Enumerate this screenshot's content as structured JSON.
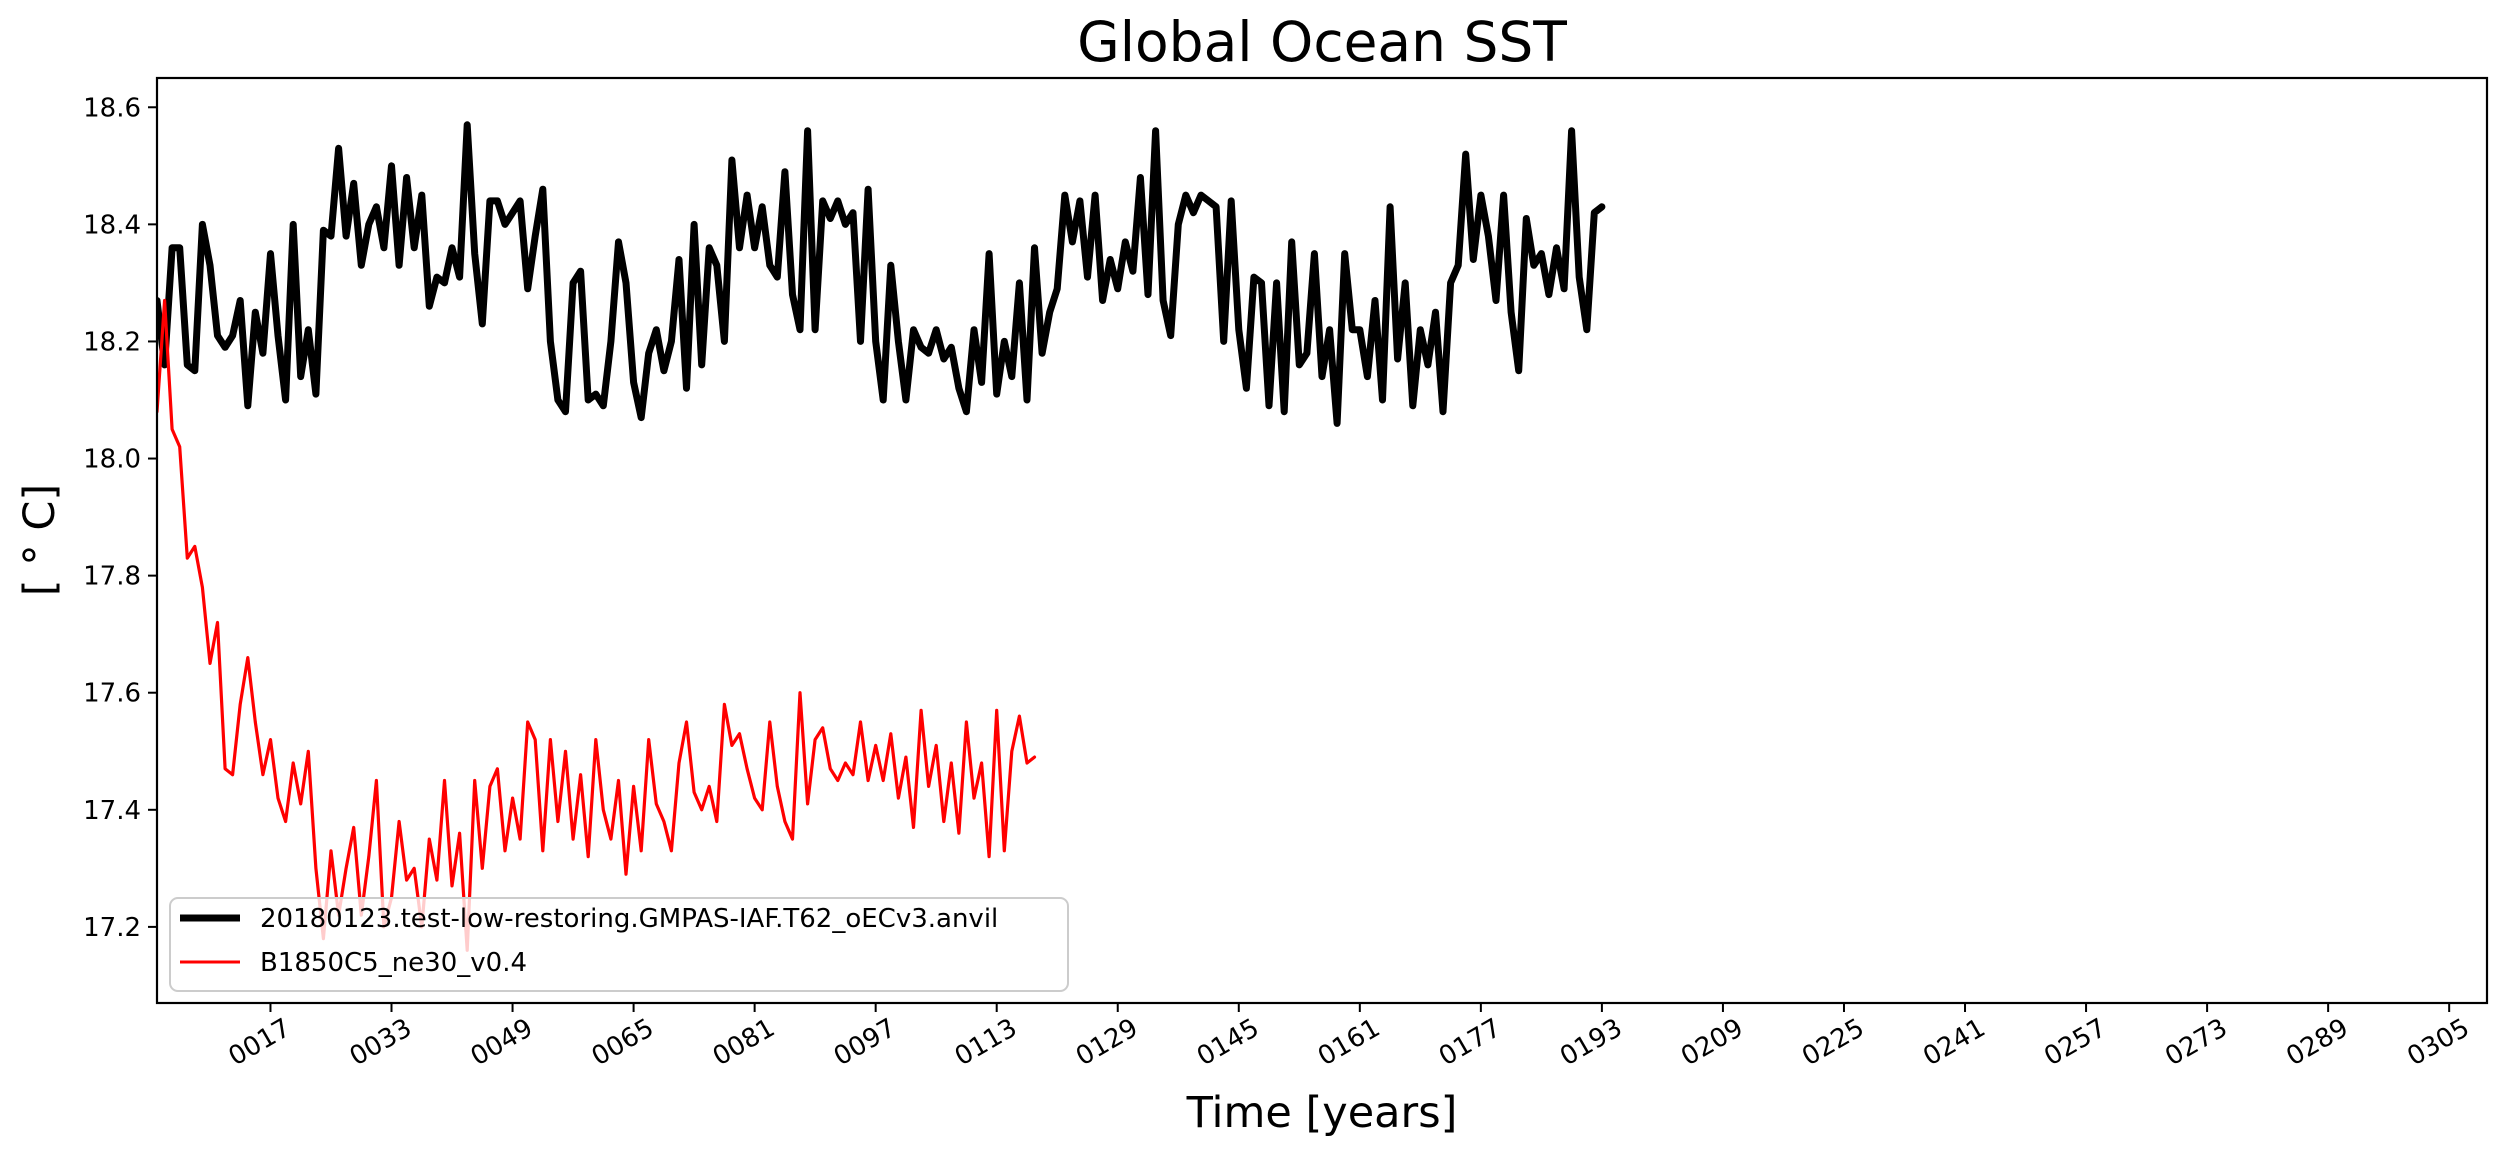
{
  "chart_data": {
    "type": "line",
    "title": "Global Ocean SST",
    "xlabel": "Time [years]",
    "ylabel": "[$^\\circ$C]",
    "ylabel_display": "[ ° C]",
    "xlim": [
      2,
      310
    ],
    "ylim": [
      17.07,
      18.65
    ],
    "yticks": [
      17.2,
      17.4,
      17.6,
      17.8,
      18.0,
      18.2,
      18.4,
      18.6
    ],
    "ytick_labels": [
      "17.2",
      "17.4",
      "17.6",
      "17.8",
      "18.0",
      "18.2",
      "18.4",
      "18.6"
    ],
    "xticks": [
      17,
      33,
      49,
      65,
      81,
      97,
      113,
      129,
      145,
      161,
      177,
      193,
      209,
      225,
      241,
      257,
      273,
      289,
      305
    ],
    "xtick_labels": [
      "0017",
      "0033",
      "0049",
      "0065",
      "0081",
      "0097",
      "0113",
      "0129",
      "0145",
      "0161",
      "0177",
      "0193",
      "0209",
      "0225",
      "0241",
      "0257",
      "0273",
      "0289",
      "0305"
    ],
    "grid": false,
    "legend_position": "lower-left",
    "series": [
      {
        "name": "20180123.test-low-restoring.GMPAS-IAF.T62_oECv3.anvil",
        "color": "#000000",
        "style": "thick",
        "points": [
          [
            2,
            18.27
          ],
          [
            3,
            18.16
          ],
          [
            4,
            18.36
          ],
          [
            5,
            18.36
          ],
          [
            6,
            18.16
          ],
          [
            7,
            18.15
          ],
          [
            8,
            18.4
          ],
          [
            9,
            18.33
          ],
          [
            10,
            18.21
          ],
          [
            11,
            18.19
          ],
          [
            12,
            18.21
          ],
          [
            13,
            18.27
          ],
          [
            14,
            18.09
          ],
          [
            15,
            18.25
          ],
          [
            16,
            18.18
          ],
          [
            17,
            18.35
          ],
          [
            18,
            18.21
          ],
          [
            19,
            18.1
          ],
          [
            20,
            18.4
          ],
          [
            21,
            18.14
          ],
          [
            22,
            18.22
          ],
          [
            23,
            18.11
          ],
          [
            24,
            18.39
          ],
          [
            25,
            18.38
          ],
          [
            26,
            18.53
          ],
          [
            27,
            18.38
          ],
          [
            28,
            18.47
          ],
          [
            29,
            18.33
          ],
          [
            30,
            18.4
          ],
          [
            31,
            18.43
          ],
          [
            32,
            18.36
          ],
          [
            33,
            18.5
          ],
          [
            34,
            18.33
          ],
          [
            35,
            18.48
          ],
          [
            36,
            18.36
          ],
          [
            37,
            18.45
          ],
          [
            38,
            18.26
          ],
          [
            39,
            18.31
          ],
          [
            40,
            18.3
          ],
          [
            41,
            18.36
          ],
          [
            42,
            18.31
          ],
          [
            43,
            18.57
          ],
          [
            44,
            18.35
          ],
          [
            45,
            18.23
          ],
          [
            46,
            18.44
          ],
          [
            47,
            18.44
          ],
          [
            48,
            18.4
          ],
          [
            49,
            18.42
          ],
          [
            50,
            18.44
          ],
          [
            51,
            18.29
          ],
          [
            52,
            18.38
          ],
          [
            53,
            18.46
          ],
          [
            54,
            18.2
          ],
          [
            55,
            18.1
          ],
          [
            56,
            18.08
          ],
          [
            57,
            18.3
          ],
          [
            58,
            18.32
          ],
          [
            59,
            18.1
          ],
          [
            60,
            18.11
          ],
          [
            61,
            18.09
          ],
          [
            62,
            18.2
          ],
          [
            63,
            18.37
          ],
          [
            64,
            18.3
          ],
          [
            65,
            18.13
          ],
          [
            66,
            18.07
          ],
          [
            67,
            18.18
          ],
          [
            68,
            18.22
          ],
          [
            69,
            18.15
          ],
          [
            70,
            18.2
          ],
          [
            71,
            18.34
          ],
          [
            72,
            18.12
          ],
          [
            73,
            18.4
          ],
          [
            74,
            18.16
          ],
          [
            75,
            18.36
          ],
          [
            76,
            18.33
          ],
          [
            77,
            18.2
          ],
          [
            78,
            18.51
          ],
          [
            79,
            18.36
          ],
          [
            80,
            18.45
          ],
          [
            81,
            18.36
          ],
          [
            82,
            18.43
          ],
          [
            83,
            18.33
          ],
          [
            84,
            18.31
          ],
          [
            85,
            18.49
          ],
          [
            86,
            18.28
          ],
          [
            87,
            18.22
          ],
          [
            88,
            18.56
          ],
          [
            89,
            18.22
          ],
          [
            90,
            18.44
          ],
          [
            91,
            18.41
          ],
          [
            92,
            18.44
          ],
          [
            93,
            18.4
          ],
          [
            94,
            18.42
          ],
          [
            95,
            18.2
          ],
          [
            96,
            18.46
          ],
          [
            97,
            18.2
          ],
          [
            98,
            18.1
          ],
          [
            99,
            18.33
          ],
          [
            100,
            18.2
          ],
          [
            101,
            18.1
          ],
          [
            102,
            18.22
          ],
          [
            103,
            18.19
          ],
          [
            104,
            18.18
          ],
          [
            105,
            18.22
          ],
          [
            106,
            18.17
          ],
          [
            107,
            18.19
          ],
          [
            108,
            18.12
          ],
          [
            109,
            18.08
          ],
          [
            110,
            18.22
          ],
          [
            111,
            18.13
          ],
          [
            112,
            18.35
          ],
          [
            113,
            18.11
          ],
          [
            114,
            18.2
          ],
          [
            115,
            18.14
          ],
          [
            116,
            18.3
          ],
          [
            117,
            18.1
          ],
          [
            118,
            18.36
          ],
          [
            119,
            18.18
          ],
          [
            120,
            18.25
          ],
          [
            121,
            18.29
          ],
          [
            122,
            18.45
          ],
          [
            123,
            18.37
          ],
          [
            124,
            18.44
          ],
          [
            125,
            18.31
          ],
          [
            126,
            18.45
          ],
          [
            127,
            18.27
          ],
          [
            128,
            18.34
          ],
          [
            129,
            18.29
          ],
          [
            130,
            18.37
          ],
          [
            131,
            18.32
          ],
          [
            132,
            18.48
          ],
          [
            133,
            18.28
          ],
          [
            134,
            18.56
          ],
          [
            135,
            18.27
          ],
          [
            136,
            18.21
          ],
          [
            137,
            18.4
          ],
          [
            138,
            18.45
          ],
          [
            139,
            18.42
          ],
          [
            140,
            18.45
          ],
          [
            141,
            18.44
          ],
          [
            142,
            18.43
          ],
          [
            143,
            18.2
          ],
          [
            144,
            18.44
          ],
          [
            145,
            18.22
          ],
          [
            146,
            18.12
          ],
          [
            147,
            18.31
          ],
          [
            148,
            18.3
          ],
          [
            149,
            18.09
          ],
          [
            150,
            18.3
          ],
          [
            151,
            18.08
          ],
          [
            152,
            18.37
          ],
          [
            153,
            18.16
          ],
          [
            154,
            18.18
          ],
          [
            155,
            18.35
          ],
          [
            156,
            18.14
          ],
          [
            157,
            18.22
          ],
          [
            158,
            18.06
          ],
          [
            159,
            18.35
          ],
          [
            160,
            18.22
          ],
          [
            161,
            18.22
          ],
          [
            162,
            18.14
          ],
          [
            163,
            18.27
          ],
          [
            164,
            18.1
          ],
          [
            165,
            18.43
          ],
          [
            166,
            18.17
          ],
          [
            167,
            18.3
          ],
          [
            168,
            18.09
          ],
          [
            169,
            18.22
          ],
          [
            170,
            18.16
          ],
          [
            171,
            18.25
          ],
          [
            172,
            18.08
          ],
          [
            173,
            18.3
          ],
          [
            174,
            18.33
          ],
          [
            175,
            18.52
          ],
          [
            176,
            18.34
          ],
          [
            177,
            18.45
          ],
          [
            178,
            18.38
          ],
          [
            179,
            18.27
          ],
          [
            180,
            18.45
          ],
          [
            181,
            18.25
          ],
          [
            182,
            18.15
          ],
          [
            183,
            18.41
          ],
          [
            184,
            18.33
          ],
          [
            185,
            18.35
          ],
          [
            186,
            18.28
          ],
          [
            187,
            18.36
          ],
          [
            188,
            18.29
          ],
          [
            189,
            18.56
          ],
          [
            190,
            18.31
          ],
          [
            191,
            18.22
          ],
          [
            192,
            18.42
          ],
          [
            193,
            18.43
          ]
        ]
      },
      {
        "name": "B1850C5_ne30_v0.4",
        "color": "#ff0000",
        "style": "thin",
        "points": [
          [
            2,
            18.08
          ],
          [
            3,
            18.27
          ],
          [
            4,
            18.05
          ],
          [
            5,
            18.02
          ],
          [
            6,
            17.83
          ],
          [
            7,
            17.85
          ],
          [
            8,
            17.78
          ],
          [
            9,
            17.65
          ],
          [
            10,
            17.72
          ],
          [
            11,
            17.47
          ],
          [
            12,
            17.46
          ],
          [
            13,
            17.58
          ],
          [
            14,
            17.66
          ],
          [
            15,
            17.55
          ],
          [
            16,
            17.46
          ],
          [
            17,
            17.52
          ],
          [
            18,
            17.42
          ],
          [
            19,
            17.38
          ],
          [
            20,
            17.48
          ],
          [
            21,
            17.41
          ],
          [
            22,
            17.5
          ],
          [
            23,
            17.3
          ],
          [
            24,
            17.18
          ],
          [
            25,
            17.33
          ],
          [
            26,
            17.22
          ],
          [
            27,
            17.3
          ],
          [
            28,
            17.37
          ],
          [
            29,
            17.22
          ],
          [
            30,
            17.32
          ],
          [
            31,
            17.45
          ],
          [
            32,
            17.2
          ],
          [
            33,
            17.25
          ],
          [
            34,
            17.38
          ],
          [
            35,
            17.28
          ],
          [
            36,
            17.3
          ],
          [
            37,
            17.2
          ],
          [
            38,
            17.35
          ],
          [
            39,
            17.28
          ],
          [
            40,
            17.45
          ],
          [
            41,
            17.27
          ],
          [
            42,
            17.36
          ],
          [
            43,
            17.16
          ],
          [
            44,
            17.45
          ],
          [
            45,
            17.3
          ],
          [
            46,
            17.44
          ],
          [
            47,
            17.47
          ],
          [
            48,
            17.33
          ],
          [
            49,
            17.42
          ],
          [
            50,
            17.35
          ],
          [
            51,
            17.55
          ],
          [
            52,
            17.52
          ],
          [
            53,
            17.33
          ],
          [
            54,
            17.52
          ],
          [
            55,
            17.38
          ],
          [
            56,
            17.5
          ],
          [
            57,
            17.35
          ],
          [
            58,
            17.46
          ],
          [
            59,
            17.32
          ],
          [
            60,
            17.52
          ],
          [
            61,
            17.4
          ],
          [
            62,
            17.35
          ],
          [
            63,
            17.45
          ],
          [
            64,
            17.29
          ],
          [
            65,
            17.44
          ],
          [
            66,
            17.33
          ],
          [
            67,
            17.52
          ],
          [
            68,
            17.41
          ],
          [
            69,
            17.38
          ],
          [
            70,
            17.33
          ],
          [
            71,
            17.48
          ],
          [
            72,
            17.55
          ],
          [
            73,
            17.43
          ],
          [
            74,
            17.4
          ],
          [
            75,
            17.44
          ],
          [
            76,
            17.38
          ],
          [
            77,
            17.58
          ],
          [
            78,
            17.51
          ],
          [
            79,
            17.53
          ],
          [
            80,
            17.47
          ],
          [
            81,
            17.42
          ],
          [
            82,
            17.4
          ],
          [
            83,
            17.55
          ],
          [
            84,
            17.44
          ],
          [
            85,
            17.38
          ],
          [
            86,
            17.35
          ],
          [
            87,
            17.6
          ],
          [
            88,
            17.41
          ],
          [
            89,
            17.52
          ],
          [
            90,
            17.54
          ],
          [
            91,
            17.47
          ],
          [
            92,
            17.45
          ],
          [
            93,
            17.48
          ],
          [
            94,
            17.46
          ],
          [
            95,
            17.55
          ],
          [
            96,
            17.45
          ],
          [
            97,
            17.51
          ],
          [
            98,
            17.45
          ],
          [
            99,
            17.53
          ],
          [
            100,
            17.42
          ],
          [
            101,
            17.49
          ],
          [
            102,
            17.37
          ],
          [
            103,
            17.57
          ],
          [
            104,
            17.44
          ],
          [
            105,
            17.51
          ],
          [
            106,
            17.38
          ],
          [
            107,
            17.48
          ],
          [
            108,
            17.36
          ],
          [
            109,
            17.55
          ],
          [
            110,
            17.42
          ],
          [
            111,
            17.48
          ],
          [
            112,
            17.32
          ],
          [
            113,
            17.57
          ],
          [
            114,
            17.33
          ],
          [
            115,
            17.5
          ],
          [
            116,
            17.56
          ],
          [
            117,
            17.48
          ],
          [
            118,
            17.49
          ]
        ]
      }
    ]
  }
}
